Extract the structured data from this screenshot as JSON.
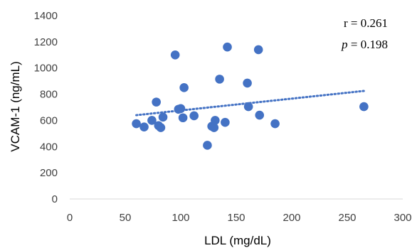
{
  "chart_data": {
    "type": "scatter",
    "title": "",
    "xlabel": "LDL (mg/dL)",
    "ylabel": "VCAM-1 (ng/mL)",
    "xlim": [
      0,
      300
    ],
    "ylim": [
      0,
      1400
    ],
    "x_ticks": [
      "0",
      "50",
      "100",
      "150",
      "200",
      "250",
      "300"
    ],
    "y_ticks": [
      "0",
      "200",
      "400",
      "600",
      "800",
      "1000",
      "1200",
      "1400"
    ],
    "grid": false,
    "series": [
      {
        "points": [
          {
            "x": 60,
            "y": 575
          },
          {
            "x": 67,
            "y": 550
          },
          {
            "x": 74,
            "y": 600
          },
          {
            "x": 78,
            "y": 740
          },
          {
            "x": 80,
            "y": 560
          },
          {
            "x": 82,
            "y": 545
          },
          {
            "x": 84,
            "y": 625
          },
          {
            "x": 95,
            "y": 1100
          },
          {
            "x": 98,
            "y": 685
          },
          {
            "x": 100,
            "y": 690
          },
          {
            "x": 102,
            "y": 620
          },
          {
            "x": 103,
            "y": 850
          },
          {
            "x": 112,
            "y": 635
          },
          {
            "x": 124,
            "y": 410
          },
          {
            "x": 128,
            "y": 555
          },
          {
            "x": 130,
            "y": 545
          },
          {
            "x": 131,
            "y": 600
          },
          {
            "x": 135,
            "y": 915
          },
          {
            "x": 140,
            "y": 585
          },
          {
            "x": 142,
            "y": 1160
          },
          {
            "x": 160,
            "y": 885
          },
          {
            "x": 161,
            "y": 705
          },
          {
            "x": 170,
            "y": 1140
          },
          {
            "x": 171,
            "y": 640
          },
          {
            "x": 185,
            "y": 575
          },
          {
            "x": 265,
            "y": 705
          }
        ]
      }
    ],
    "trendline": {
      "style": "dotted",
      "x": [
        60,
        265
      ],
      "y": [
        640,
        825
      ]
    },
    "annotations": {
      "r_label": "r = 0.261",
      "p_symbol": "p",
      "p_value": " = 0.198"
    },
    "colors": {
      "marker": "#4472C4",
      "trendline": "#4472C4",
      "axis": "#d9d9d9"
    }
  }
}
